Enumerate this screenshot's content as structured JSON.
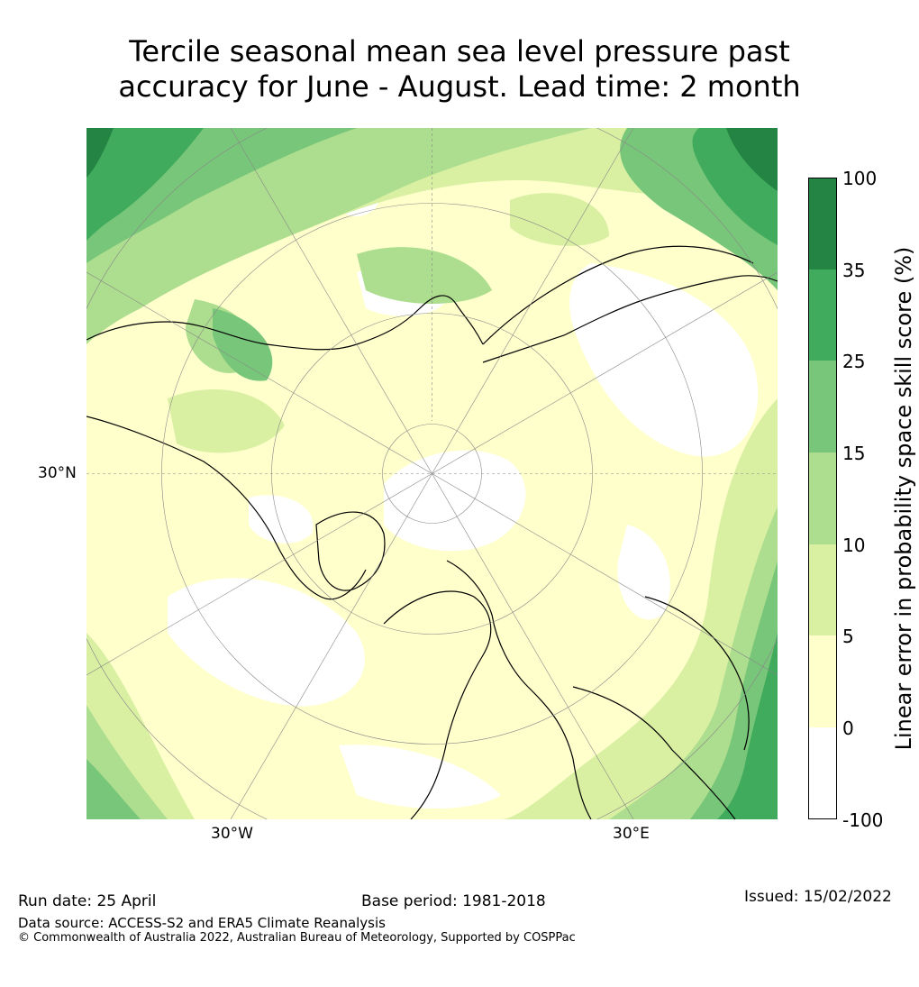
{
  "title": {
    "line1": "Tercile seasonal mean sea level pressure past",
    "line2": "accuracy for June - August. Lead time: 2 month"
  },
  "map_labels": {
    "lat_30n": "30°N",
    "lon_30w": "30°W",
    "lon_30e": "30°E"
  },
  "colorbar": {
    "title": "Linear error in probability space skill score (%)",
    "ticks": [
      "100",
      "35",
      "25",
      "15",
      "10",
      "5",
      "0",
      "-100"
    ],
    "colors": [
      "#ffffff",
      "#ffffcc",
      "#d9f0a3",
      "#addd8e",
      "#78c679",
      "#41ab5d",
      "#238443"
    ]
  },
  "footer": {
    "run_date": "Run date: 25 April",
    "base_period": "Base period: 1981-2018",
    "issued": "Issued: 15/02/2022",
    "data_source": "Data source: ACCESS-S2 and ERA5 Climate Reanalysis",
    "copyright": "© Commonwealth of Australia 2022, Australian Bureau of Meteorology, Supported by COSPPac"
  }
}
